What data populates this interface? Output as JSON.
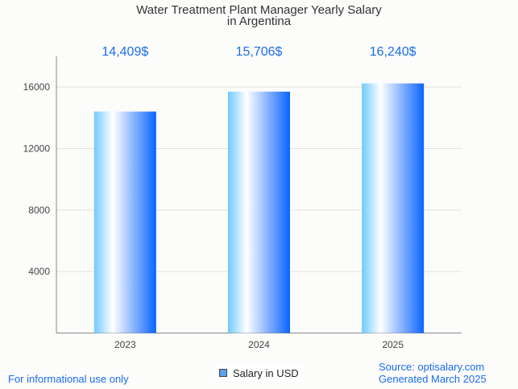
{
  "chart_data": {
    "type": "bar",
    "title": "Water Treatment Plant Manager Yearly Salary",
    "subtitle": "in Argentina",
    "categories": [
      "2023",
      "2024",
      "2025"
    ],
    "values": [
      14409,
      15706,
      16240
    ],
    "data_labels": [
      "14,409$",
      "15,706$",
      "16,240$"
    ],
    "yticks": [
      4000,
      8000,
      12000,
      16000
    ],
    "ylim": [
      0,
      18000
    ],
    "grid": true,
    "legend": "Salary in USD",
    "legend_position": "bottom",
    "label_color": "#1a6cf0"
  },
  "footer": {
    "left": "For informational use only",
    "source": "Source: optisalary.com",
    "generated": "Generated March 2025"
  }
}
